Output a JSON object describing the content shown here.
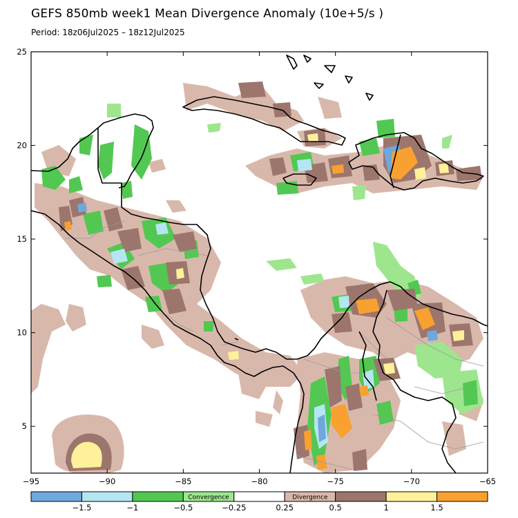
{
  "title": "GEFS 850mb week1 Mean Divergence Anomaly (10e+5/s )",
  "subtitle": "Period: 18z06Jul2025 – 18z12Jul2025",
  "map": {
    "lon_range": [
      -95,
      -65
    ],
    "lat_range": [
      2.5,
      25
    ],
    "x_ticks": [
      {
        "value": -95,
        "label": "−95"
      },
      {
        "value": -90,
        "label": "−90"
      },
      {
        "value": -85,
        "label": "−85"
      },
      {
        "value": -80,
        "label": "−80"
      },
      {
        "value": -75,
        "label": "−75"
      },
      {
        "value": -70,
        "label": "−70"
      },
      {
        "value": -65,
        "label": "−65"
      }
    ],
    "y_ticks": [
      {
        "value": 5,
        "label": "5"
      },
      {
        "value": 10,
        "label": "10"
      },
      {
        "value": 15,
        "label": "15"
      },
      {
        "value": 20,
        "label": "20"
      },
      {
        "value": 25,
        "label": "25"
      }
    ]
  },
  "colorbar": {
    "boundaries": [
      {
        "label": "−1.5"
      },
      {
        "label": "−1"
      },
      {
        "label": "−0.5"
      },
      {
        "label": "−0.25"
      },
      {
        "label": "0.25"
      },
      {
        "label": "0.5"
      },
      {
        "label": "1"
      },
      {
        "label": "1.5"
      }
    ],
    "colors": [
      "#6fa8dc",
      "#b4e6f2",
      "#52c852",
      "#9ee68e",
      "#ffffff",
      "#d9b8ac",
      "#9c766c",
      "#fff19a",
      "#f8a030"
    ],
    "convergence_label": "Convergence",
    "divergence_label": "Divergence"
  },
  "palette": {
    "neg_strong": "#6fa8dc",
    "neg_med": "#b4e6f2",
    "neg_weak": "#52c852",
    "neg_light": "#9ee68e",
    "pos_light": "#d9b8ac",
    "pos_med": "#9c766c",
    "pos_strong": "#fff19a",
    "pos_max": "#f8a030",
    "coast": "#000000",
    "border": "#999999"
  }
}
